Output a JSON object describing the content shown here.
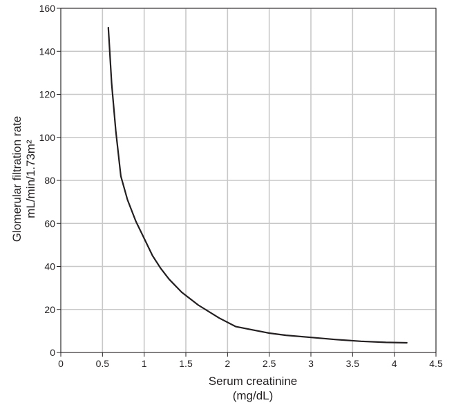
{
  "chart_data": {
    "type": "line",
    "title": "",
    "xlabel": [
      "Serum creatinine",
      "(mg/dL)"
    ],
    "ylabel": [
      "Glomerular filtration rate",
      "mL/min/1.73m²"
    ],
    "xlim": [
      0,
      4.5
    ],
    "ylim": [
      0,
      160
    ],
    "x_ticks": [
      0,
      0.5,
      1,
      1.5,
      2,
      2.5,
      3,
      3.5,
      4,
      4.5
    ],
    "x_tick_labels": [
      "0",
      "0.5",
      "1",
      "1.5",
      "2",
      "2.5",
      "3",
      "3.5",
      "4",
      "4.5"
    ],
    "y_ticks": [
      0,
      20,
      40,
      60,
      80,
      100,
      120,
      140,
      160
    ],
    "y_tick_labels": [
      "0",
      "20",
      "40",
      "60",
      "80",
      "100",
      "120",
      "140",
      "160"
    ],
    "grid": true,
    "legend": false,
    "colors": {
      "line": "#231f20",
      "grid": "#c8c8c8",
      "axis": "#231f20"
    },
    "series": [
      {
        "x": [
          0.57,
          0.61,
          0.66,
          0.72,
          0.8,
          0.9,
          1.0,
          1.1,
          1.2,
          1.3,
          1.45,
          1.65,
          1.9,
          2.1,
          2.3,
          2.5,
          2.7,
          3.0,
          3.3,
          3.6,
          3.9,
          4.15
        ],
        "y": [
          151,
          125,
          103,
          82,
          71,
          61,
          53,
          45,
          39,
          34,
          28,
          22,
          16,
          12,
          10.5,
          9,
          8,
          7,
          6,
          5.2,
          4.7,
          4.5
        ]
      }
    ]
  }
}
